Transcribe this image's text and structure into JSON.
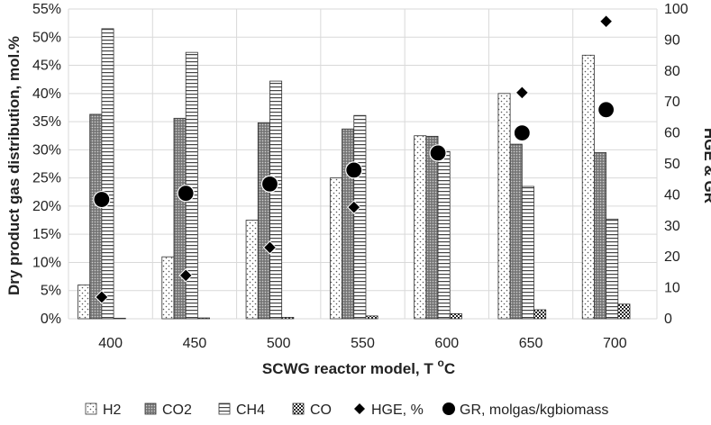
{
  "chart_data": {
    "type": "bar",
    "categories": [
      "400",
      "450",
      "500",
      "550",
      "600",
      "650",
      "700"
    ],
    "xlabel": "SCWG reactor model, T ⁰C",
    "xlabel_main": "SCWG reactor model, T ",
    "xlabel_sup": "o",
    "xlabel_tail": "C",
    "ylabel": "Dry product gas distribution, mol.%",
    "ylabel_right": "HGE & GR",
    "ylim": [
      0,
      55
    ],
    "ylim_right": [
      0,
      100
    ],
    "yticks": [
      "0%",
      "5%",
      "10%",
      "15%",
      "20%",
      "25%",
      "30%",
      "35%",
      "40%",
      "45%",
      "50%",
      "55%"
    ],
    "yticks_right": [
      "0",
      "10",
      "20",
      "30",
      "40",
      "50",
      "60",
      "70",
      "80",
      "90",
      "100"
    ],
    "legend_position": "bottom",
    "series": [
      {
        "name": "H2",
        "kind": "bar",
        "axis": "left",
        "pattern": "dots",
        "values": [
          6.0,
          11.0,
          17.5,
          25.0,
          32.5,
          40.0,
          46.8
        ]
      },
      {
        "name": "CO2",
        "kind": "bar",
        "axis": "left",
        "pattern": "dense-gray",
        "values": [
          36.3,
          35.6,
          34.8,
          33.7,
          32.4,
          31.0,
          29.5
        ]
      },
      {
        "name": "CH4",
        "kind": "bar",
        "axis": "left",
        "pattern": "horizontal-lines",
        "values": [
          51.5,
          47.3,
          42.2,
          36.1,
          29.7,
          23.5,
          17.7
        ]
      },
      {
        "name": "CO",
        "kind": "bar",
        "axis": "left",
        "pattern": "checker",
        "values": [
          0.1,
          0.15,
          0.25,
          0.5,
          0.9,
          1.6,
          2.6
        ]
      },
      {
        "name": "HGE, %",
        "kind": "marker",
        "marker": "diamond",
        "axis": "right",
        "values": [
          7,
          14,
          23,
          36,
          54,
          73,
          96
        ]
      },
      {
        "name": "GR, molgas/kgbiomass",
        "kind": "marker",
        "marker": "circle",
        "axis": "right",
        "values": [
          38.5,
          40.5,
          43.5,
          48,
          53.5,
          60,
          67.5
        ]
      }
    ]
  }
}
